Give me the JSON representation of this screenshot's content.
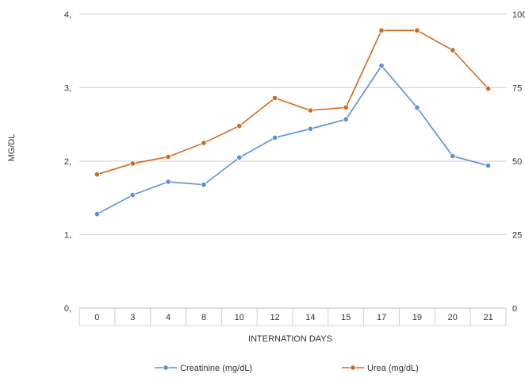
{
  "chart_data": {
    "type": "line",
    "categories": [
      "0",
      "3",
      "4",
      "8",
      "10",
      "12",
      "14",
      "15",
      "17",
      "19",
      "20",
      "21"
    ],
    "xlabel": "INTERNATION DAYS",
    "ylabel": "MG/DL",
    "y_left_ticks": [
      "0,",
      "1,",
      "2,",
      "3,",
      "4,"
    ],
    "y_left_range": [
      0,
      4
    ],
    "y_right_ticks": [
      "0",
      "25",
      "50",
      "75",
      "100"
    ],
    "y_right_range": [
      0,
      100
    ],
    "grid": true,
    "legend_position": "bottom",
    "series": [
      {
        "name": "Creatinine (mg/dL)",
        "axis": "left",
        "color": "#5b8fd6",
        "values": [
          1.28,
          1.54,
          1.72,
          1.68,
          2.05,
          2.32,
          2.44,
          2.57,
          3.3,
          2.73,
          2.07,
          1.94
        ]
      },
      {
        "name": "Urea (mg/dL)",
        "axis": "right",
        "color": "#d06a1f",
        "values": [
          45.5,
          49.2,
          51.5,
          56.2,
          62.0,
          71.5,
          67.3,
          68.3,
          94.5,
          94.5,
          87.8,
          74.7
        ]
      }
    ]
  }
}
